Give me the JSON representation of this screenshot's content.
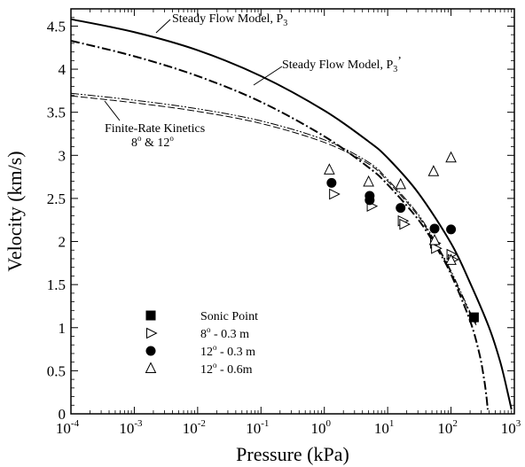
{
  "chart_data": {
    "type": "scatter",
    "xlabel": "Pressure (kPa)",
    "ylabel": "Velocity (km/s)",
    "x_scale": "log",
    "xlim": [
      0.0001,
      1000
    ],
    "ylim": [
      0,
      4.7
    ],
    "x_ticks": [
      {
        "base": "10",
        "exp": "-4",
        "value": 0.0001
      },
      {
        "base": "10",
        "exp": "-3",
        "value": 0.001
      },
      {
        "base": "10",
        "exp": "-2",
        "value": 0.01
      },
      {
        "base": "10",
        "exp": "-1",
        "value": 0.1
      },
      {
        "base": "10",
        "exp": "0",
        "value": 1
      },
      {
        "base": "10",
        "exp": "1",
        "value": 10
      },
      {
        "base": "10",
        "exp": "2",
        "value": 100
      },
      {
        "base": "10",
        "exp": "3",
        "value": 1000
      }
    ],
    "y_ticks": [
      "0",
      "0.5",
      "1",
      "1.5",
      "2",
      "2.5",
      "3",
      "3.5",
      "4",
      "4.5"
    ],
    "grid": false,
    "legend_position": "lower-center",
    "annotations": {
      "steady_p3": {
        "text": "Steady Flow Model, P",
        "sub": "3",
        "suffix": ""
      },
      "steady_p3p": {
        "text": "Steady Flow Model, P",
        "sub": "3",
        "suffix": "’"
      },
      "finite_line1": "Finite-Rate Kinetics",
      "finite_line2_a": "8",
      "finite_line2_b": " & 12",
      "deg": "o"
    },
    "lines": [
      {
        "id": "steady_p3",
        "style": "solid",
        "x": [
          0.0001,
          0.001,
          0.01,
          0.1,
          1,
          5,
          10,
          30,
          100,
          200,
          400,
          600,
          800,
          900
        ],
        "y": [
          4.58,
          4.43,
          4.22,
          3.92,
          3.52,
          3.16,
          2.97,
          2.57,
          1.98,
          1.52,
          1.0,
          0.6,
          0.22,
          0.05
        ]
      },
      {
        "id": "steady_p3p",
        "style": "dashdot",
        "x": [
          0.0001,
          0.001,
          0.01,
          0.1,
          1,
          5,
          10,
          30,
          60,
          100,
          200,
          280,
          330,
          360,
          380
        ],
        "y": [
          4.33,
          4.15,
          3.92,
          3.62,
          3.22,
          2.86,
          2.66,
          2.26,
          1.92,
          1.62,
          1.08,
          0.7,
          0.42,
          0.22,
          0.05
        ]
      },
      {
        "id": "finite_8",
        "style": "dashdotdot",
        "x": [
          0.0001,
          0.001,
          0.01,
          0.1,
          1,
          5,
          10,
          30,
          60,
          100,
          200,
          250
        ],
        "y": [
          3.72,
          3.64,
          3.54,
          3.4,
          3.18,
          2.92,
          2.72,
          2.32,
          1.96,
          1.66,
          1.18,
          1.05
        ]
      },
      {
        "id": "finite_12",
        "style": "dashed",
        "x": [
          0.0001,
          0.001,
          0.01,
          0.1,
          1,
          5,
          10,
          30,
          60,
          100,
          200,
          250
        ],
        "y": [
          3.69,
          3.61,
          3.51,
          3.37,
          3.15,
          2.9,
          2.7,
          2.3,
          1.94,
          1.64,
          1.16,
          1.03
        ]
      }
    ],
    "series": [
      {
        "name": "Sonic Point",
        "marker": "filled-square",
        "points": [
          [
            230,
            1.12
          ]
        ]
      },
      {
        "name": "8",
        "name_sup": "o",
        "name_rest": " - 0.3 m",
        "marker": "open-triangle-right",
        "points": [
          [
            1.4,
            2.55
          ],
          [
            5.5,
            2.41
          ],
          [
            17,
            2.24
          ],
          [
            18,
            2.2
          ],
          [
            55,
            1.98
          ],
          [
            57,
            1.92
          ],
          [
            100,
            1.85
          ],
          [
            105,
            1.79
          ]
        ]
      },
      {
        "name": "12",
        "name_sup": "o",
        "name_rest": " - 0.3 m",
        "marker": "filled-circle",
        "points": [
          [
            1.3,
            2.68
          ],
          [
            5.2,
            2.53
          ],
          [
            5.2,
            2.48
          ],
          [
            16,
            2.39
          ],
          [
            55,
            2.15
          ],
          [
            100,
            2.14
          ]
        ]
      },
      {
        "name": "12",
        "name_sup": "o",
        "name_rest": " - 0.6m",
        "marker": "open-triangle-up",
        "points": [
          [
            1.2,
            2.83
          ],
          [
            5.0,
            2.69
          ],
          [
            16,
            2.66
          ],
          [
            53,
            2.81
          ],
          [
            100,
            2.97
          ],
          [
            55,
            2.01
          ],
          [
            100,
            1.78
          ]
        ]
      }
    ]
  }
}
